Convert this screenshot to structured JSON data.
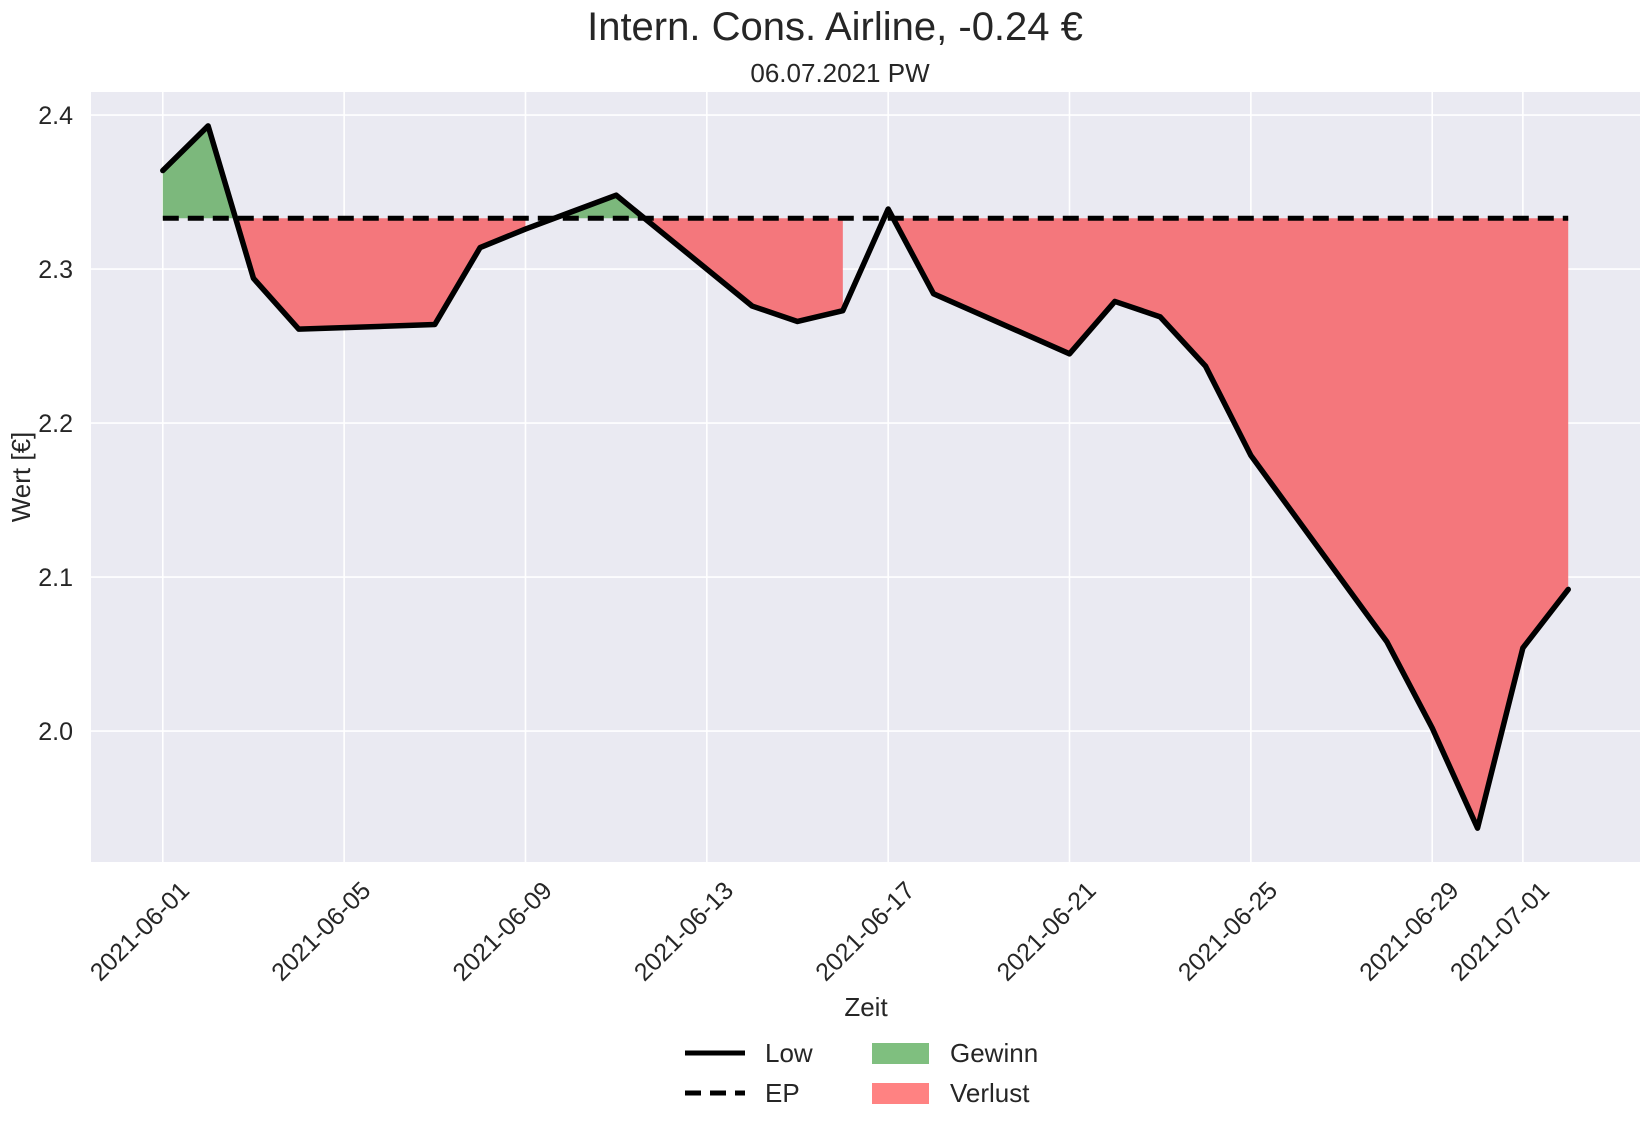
{
  "chart_data": {
    "type": "line",
    "title": "Intern. Cons. Airline, -0.24 €",
    "subtitle": "06.07.2021 PW",
    "xlabel": "Zeit",
    "ylabel": "Wert [€]",
    "ylim": [
      1.915,
      2.415
    ],
    "y_ticks": [
      "2.0",
      "2.1",
      "2.2",
      "2.3",
      "2.4"
    ],
    "y_tick_values": [
      2.0,
      2.1,
      2.2,
      2.3,
      2.4
    ],
    "x_range": [
      "2021-05-30T10:00",
      "2021-07-03T14:00"
    ],
    "x_ticks": [
      "2021-06-01",
      "2021-06-05",
      "2021-06-09",
      "2021-06-13",
      "2021-06-17",
      "2021-06-21",
      "2021-06-25",
      "2021-06-29",
      "2021-07-01"
    ],
    "grid": true,
    "series": [
      {
        "name": "Low",
        "style": "solid",
        "color": "#000000",
        "points": [
          [
            "2021-06-01",
            2.364
          ],
          [
            "2021-06-02",
            2.393
          ],
          [
            "2021-06-03",
            2.294
          ],
          [
            "2021-06-04",
            2.261
          ],
          [
            "2021-06-07",
            2.264
          ],
          [
            "2021-06-08",
            2.314
          ],
          [
            "2021-06-09",
            2.326
          ],
          [
            "2021-06-10",
            2.337
          ],
          [
            "2021-06-11",
            2.348
          ],
          [
            "2021-06-14",
            2.276
          ],
          [
            "2021-06-15",
            2.266
          ],
          [
            "2021-06-16",
            2.273
          ],
          [
            "2021-06-17",
            2.339
          ],
          [
            "2021-06-18",
            2.284
          ],
          [
            "2021-06-21",
            2.245
          ],
          [
            "2021-06-22",
            2.279
          ],
          [
            "2021-06-23",
            2.269
          ],
          [
            "2021-06-24",
            2.237
          ],
          [
            "2021-06-25",
            2.179
          ],
          [
            "2021-06-28",
            2.058
          ],
          [
            "2021-06-29",
            2.002
          ],
          [
            "2021-06-30",
            1.937
          ],
          [
            "2021-07-01",
            2.054
          ],
          [
            "2021-07-02",
            2.092
          ]
        ]
      },
      {
        "name": "EP",
        "style": "dashed",
        "color": "#000000",
        "points": [
          [
            "2021-06-01",
            2.333
          ],
          [
            "2021-07-02",
            2.333
          ]
        ]
      }
    ],
    "fills": [
      {
        "name": "Gewinn",
        "color": "#4caf50",
        "condition": "Low >= EP"
      },
      {
        "name": "Verlust",
        "color": "#ff5a5a",
        "condition": "Low < EP"
      }
    ],
    "legend": {
      "placement": "bottom-center",
      "entries": [
        {
          "label": "Low",
          "kind": "solid-line"
        },
        {
          "label": "EP",
          "kind": "dashed-line"
        },
        {
          "label": "Gewinn",
          "kind": "patch",
          "color": "#7fbf7f"
        },
        {
          "label": "Verlust",
          "kind": "patch",
          "color": "#ff8282"
        }
      ]
    },
    "colors": {
      "plot_background": "#eaeaf2",
      "grid": "#ffffff",
      "gain_fill": "#7cb87c",
      "loss_fill": "#f4777c"
    }
  }
}
